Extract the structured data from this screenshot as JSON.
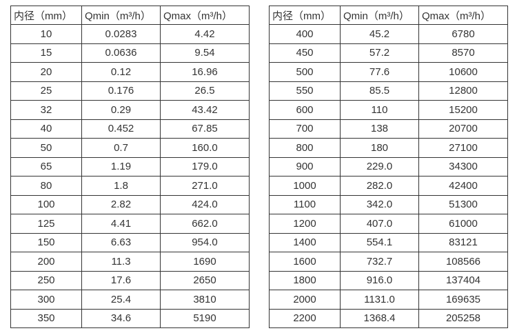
{
  "headers": {
    "diameter": "内径（mm）",
    "qmin": "Qmin（m³/h）",
    "qmax": "Qmax（m³/h）"
  },
  "tables": {
    "left": {
      "rows": [
        [
          "10",
          "0.0283",
          "4.42"
        ],
        [
          "15",
          "0.0636",
          "9.54"
        ],
        [
          "20",
          "0.12",
          "16.96"
        ],
        [
          "25",
          "0.176",
          "26.5"
        ],
        [
          "32",
          "0.29",
          "43.42"
        ],
        [
          "40",
          "0.452",
          "67.85"
        ],
        [
          "50",
          "0.7",
          "160.0"
        ],
        [
          "65",
          "1.19",
          "179.0"
        ],
        [
          "80",
          "1.8",
          "271.0"
        ],
        [
          "100",
          "2.82",
          "424.0"
        ],
        [
          "125",
          "4.41",
          "662.0"
        ],
        [
          "150",
          "6.63",
          "954.0"
        ],
        [
          "200",
          "11.3",
          "1690"
        ],
        [
          "250",
          "17.6",
          "2650"
        ],
        [
          "300",
          "25.4",
          "3810"
        ],
        [
          "350",
          "34.6",
          "5190"
        ]
      ]
    },
    "right": {
      "rows": [
        [
          "400",
          "45.2",
          "6780"
        ],
        [
          "450",
          "57.2",
          "8570"
        ],
        [
          "500",
          "77.6",
          "10600"
        ],
        [
          "550",
          "85.5",
          "12800"
        ],
        [
          "600",
          "110",
          "15200"
        ],
        [
          "700",
          "138",
          "20700"
        ],
        [
          "800",
          "180",
          "27100"
        ],
        [
          "900",
          "229.0",
          "34300"
        ],
        [
          "1000",
          "282.0",
          "42400"
        ],
        [
          "1100",
          "342.0",
          "51300"
        ],
        [
          "1200",
          "407.0",
          "61000"
        ],
        [
          "1400",
          "554.1",
          "83121"
        ],
        [
          "1600",
          "732.7",
          "108566"
        ],
        [
          "1800",
          "916.0",
          "137404"
        ],
        [
          "2000",
          "1131.0",
          "169635"
        ],
        [
          "2200",
          "1368.4",
          "205258"
        ]
      ]
    }
  }
}
